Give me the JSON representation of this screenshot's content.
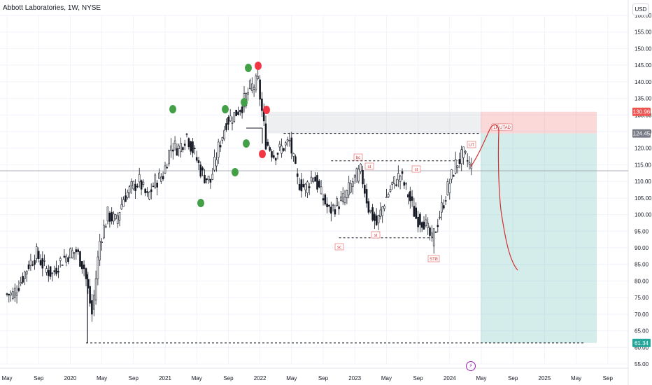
{
  "header": {
    "title": "Abbott Laboratories, 1W, NYSE",
    "currency": "USD",
    "event_icon": "flash-icon"
  },
  "colors": {
    "up": "#26a69a",
    "down": "#ef5350",
    "candle": "#131722",
    "stop_zone": "#ef5350",
    "target_zone": "#26a69a",
    "supply_zone": "#b2b5be",
    "drawing": "#d32f2f",
    "green_dot": "#43a047",
    "red_dot": "#f23645",
    "label_box": "#e57373",
    "flash": "#9c27b0"
  },
  "chart_data": {
    "type": "candlestick",
    "ylim": [
      55,
      160
    ],
    "y_ticks": [
      "55.00",
      "60.00",
      "65.00",
      "70.00",
      "75.00",
      "80.00",
      "85.00",
      "90.00",
      "95.00",
      "100.00",
      "105.00",
      "110.00",
      "115.00",
      "120.00",
      "125.00",
      "130.00",
      "135.00",
      "140.00",
      "145.00",
      "150.00",
      "155.00",
      "160.00"
    ],
    "x_ticks": [
      "May",
      "Sep",
      "2020",
      "May",
      "Sep",
      "2021",
      "May",
      "Sep",
      "2022",
      "May",
      "Sep",
      "2023",
      "May",
      "Sep",
      "2024",
      "May",
      "Sep",
      "2025",
      "May",
      "Sep"
    ],
    "x_start": "2019-05",
    "months": [
      "2019-05",
      "2019-06",
      "2019-07",
      "2019-08",
      "2019-09",
      "2019-10",
      "2019-11",
      "2019-12",
      "2020-01",
      "2020-02",
      "2020-03",
      "2020-04",
      "2020-05",
      "2020-06",
      "2020-07",
      "2020-08",
      "2020-09",
      "2020-10",
      "2020-11",
      "2020-12",
      "2021-01",
      "2021-02",
      "2021-03",
      "2021-04",
      "2021-05",
      "2021-06",
      "2021-07",
      "2021-08",
      "2021-09",
      "2021-10",
      "2021-11",
      "2021-12",
      "2022-01",
      "2022-02",
      "2022-03",
      "2022-04",
      "2022-05",
      "2022-06",
      "2022-07",
      "2022-08",
      "2022-09",
      "2022-10",
      "2022-11",
      "2022-12",
      "2023-01",
      "2023-02",
      "2023-03",
      "2023-04",
      "2023-05",
      "2023-06",
      "2023-07",
      "2023-08",
      "2023-09",
      "2023-10",
      "2023-11",
      "2023-12",
      "2024-01",
      "2024-02",
      "2024-03"
    ],
    "closes": [
      76,
      80,
      85,
      88,
      84,
      82,
      86,
      88,
      89,
      84,
      70,
      92,
      100,
      98,
      105,
      108,
      110,
      105,
      110,
      112,
      121,
      120,
      124,
      118,
      112,
      110,
      120,
      128,
      130,
      133,
      138,
      140,
      122,
      118,
      120,
      122,
      110,
      108,
      112,
      106,
      101,
      103,
      105,
      110,
      113,
      102,
      97,
      104,
      109,
      112,
      106,
      99,
      98,
      92,
      100,
      108,
      115,
      118,
      114
    ],
    "price_labels": [
      {
        "value": "130.96",
        "color": "#ef5350"
      },
      {
        "value": "124.45",
        "color": "#787b86"
      },
      {
        "value": "61.34",
        "color": "#26a69a"
      }
    ],
    "levels": {
      "stop": 130.96,
      "entry": 124.45,
      "target": 61.34,
      "current": 113.2,
      "range_high": 116.2,
      "range_low": 93.0
    },
    "annotations": [
      "bc",
      "st",
      "st",
      "UT",
      "sc",
      "st",
      "STB",
      "LPSY",
      "UTAD"
    ],
    "markers": {
      "green": 7,
      "red": 3
    }
  }
}
